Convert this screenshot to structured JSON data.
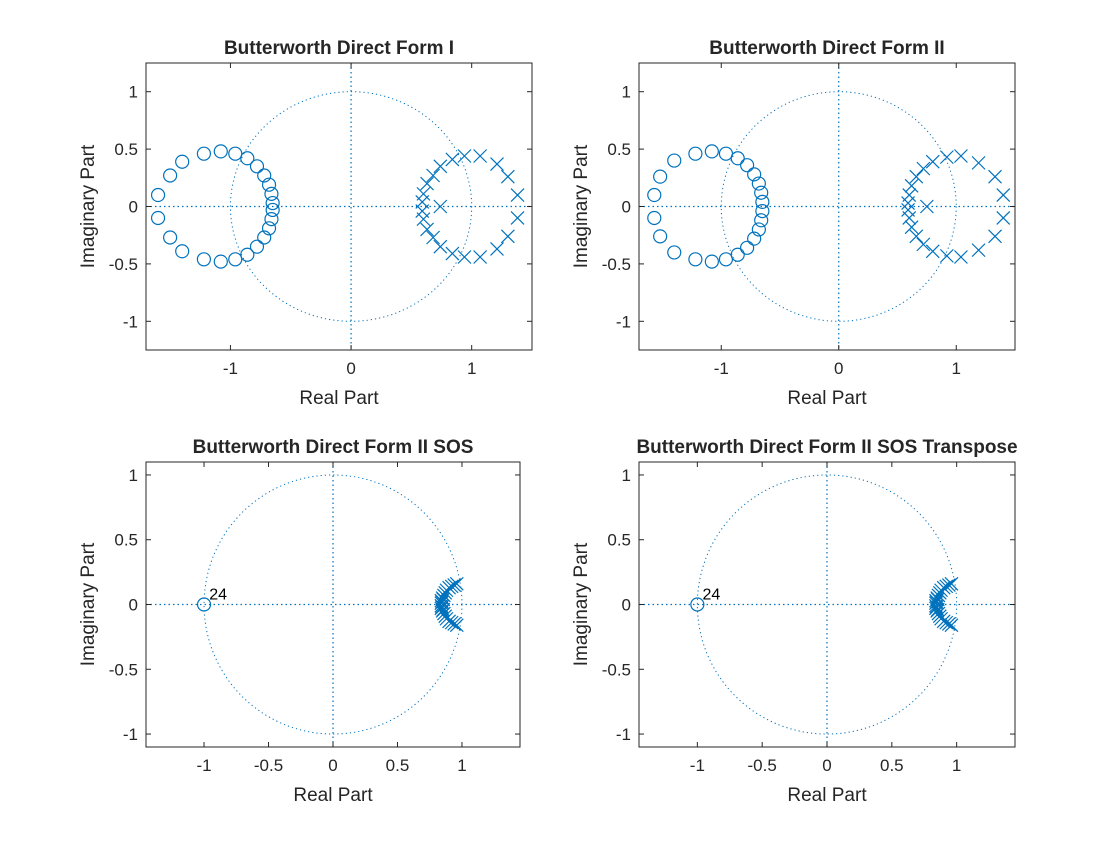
{
  "figure": {
    "background": "#ffffff"
  },
  "style": {
    "mark_color": "#0072BD",
    "axis_color": "#262626"
  },
  "chart_data": [
    {
      "type": "scatter",
      "title": "Butterworth Direct Form I",
      "xlabel": "Real Part",
      "ylabel": "Imaginary Part",
      "xlim": [
        -1.7,
        1.5
      ],
      "ylim": [
        -1.25,
        1.25
      ],
      "xticks": [
        -1,
        0,
        1
      ],
      "yticks": [
        -1,
        -0.5,
        0,
        0.5,
        1
      ],
      "xticklabels": [
        "-1",
        "0",
        "1"
      ],
      "yticklabels": [
        "-1",
        "-0.5",
        "0",
        "0.5",
        "1"
      ],
      "unit_circle": true,
      "annotations": [],
      "series": [
        {
          "marker": "o",
          "points": [
            [
              -1.6,
              0.1
            ],
            [
              -1.6,
              -0.1
            ],
            [
              -1.5,
              0.27
            ],
            [
              -1.5,
              -0.27
            ],
            [
              -1.4,
              0.39
            ],
            [
              -1.4,
              -0.39
            ],
            [
              -1.22,
              0.46
            ],
            [
              -1.22,
              -0.46
            ],
            [
              -1.08,
              0.48
            ],
            [
              -1.08,
              -0.48
            ],
            [
              -0.96,
              0.46
            ],
            [
              -0.96,
              -0.46
            ],
            [
              -0.86,
              0.42
            ],
            [
              -0.86,
              -0.42
            ],
            [
              -0.78,
              0.35
            ],
            [
              -0.78,
              -0.35
            ],
            [
              -0.72,
              0.27
            ],
            [
              -0.72,
              -0.27
            ],
            [
              -0.68,
              0.19
            ],
            [
              -0.68,
              -0.19
            ],
            [
              -0.66,
              0.11
            ],
            [
              -0.66,
              -0.11
            ],
            [
              -0.65,
              0.03
            ],
            [
              -0.65,
              -0.03
            ]
          ]
        },
        {
          "marker": "x",
          "points": [
            [
              1.38,
              0.1
            ],
            [
              1.38,
              -0.1
            ],
            [
              1.3,
              0.26
            ],
            [
              1.3,
              -0.26
            ],
            [
              1.21,
              0.37
            ],
            [
              1.21,
              -0.37
            ],
            [
              1.07,
              0.44
            ],
            [
              1.07,
              -0.44
            ],
            [
              0.94,
              0.44
            ],
            [
              0.94,
              -0.44
            ],
            [
              0.84,
              0.41
            ],
            [
              0.84,
              -0.41
            ],
            [
              0.74,
              0.35
            ],
            [
              0.74,
              -0.35
            ],
            [
              0.68,
              0.27
            ],
            [
              0.68,
              -0.27
            ],
            [
              0.63,
              0.2
            ],
            [
              0.63,
              -0.2
            ],
            [
              0.6,
              0.11
            ],
            [
              0.6,
              -0.11
            ],
            [
              0.59,
              0.04
            ],
            [
              0.59,
              -0.04
            ],
            [
              0.74,
              0.0
            ]
          ]
        }
      ]
    },
    {
      "type": "scatter",
      "title": "Butterworth Direct Form II",
      "xlabel": "Real Part",
      "ylabel": "Imaginary Part",
      "xlim": [
        -1.7,
        1.5
      ],
      "ylim": [
        -1.25,
        1.25
      ],
      "xticks": [
        -1,
        0,
        1
      ],
      "yticks": [
        -1,
        -0.5,
        0,
        0.5,
        1
      ],
      "xticklabels": [
        "-1",
        "0",
        "1"
      ],
      "yticklabels": [
        "-1",
        "-0.5",
        "0",
        "0.5",
        "1"
      ],
      "unit_circle": true,
      "annotations": [],
      "series": [
        {
          "marker": "o",
          "points": [
            [
              -1.57,
              0.1
            ],
            [
              -1.57,
              -0.1
            ],
            [
              -1.52,
              0.26
            ],
            [
              -1.52,
              -0.26
            ],
            [
              -1.4,
              0.4
            ],
            [
              -1.4,
              -0.4
            ],
            [
              -1.22,
              0.46
            ],
            [
              -1.22,
              -0.46
            ],
            [
              -1.08,
              0.48
            ],
            [
              -1.08,
              -0.48
            ],
            [
              -0.96,
              0.46
            ],
            [
              -0.96,
              -0.46
            ],
            [
              -0.86,
              0.42
            ],
            [
              -0.86,
              -0.42
            ],
            [
              -0.78,
              0.36
            ],
            [
              -0.78,
              -0.36
            ],
            [
              -0.72,
              0.28
            ],
            [
              -0.72,
              -0.28
            ],
            [
              -0.68,
              0.2
            ],
            [
              -0.68,
              -0.2
            ],
            [
              -0.66,
              0.12
            ],
            [
              -0.66,
              -0.12
            ],
            [
              -0.65,
              0.04
            ],
            [
              -0.65,
              -0.04
            ]
          ]
        },
        {
          "marker": "x",
          "points": [
            [
              1.4,
              0.1
            ],
            [
              1.4,
              -0.1
            ],
            [
              1.33,
              0.26
            ],
            [
              1.33,
              -0.26
            ],
            [
              1.19,
              0.38
            ],
            [
              1.19,
              -0.38
            ],
            [
              1.04,
              0.44
            ],
            [
              1.04,
              -0.44
            ],
            [
              0.92,
              0.43
            ],
            [
              0.92,
              -0.43
            ],
            [
              0.8,
              0.39
            ],
            [
              0.8,
              -0.39
            ],
            [
              0.72,
              0.33
            ],
            [
              0.72,
              -0.33
            ],
            [
              0.66,
              0.26
            ],
            [
              0.66,
              -0.26
            ],
            [
              0.62,
              0.18
            ],
            [
              0.62,
              -0.18
            ],
            [
              0.6,
              0.1
            ],
            [
              0.6,
              -0.1
            ],
            [
              0.59,
              0.03
            ],
            [
              0.59,
              -0.03
            ],
            [
              0.75,
              0.0
            ]
          ]
        }
      ]
    },
    {
      "type": "scatter",
      "title": "Butterworth Direct Form II SOS",
      "xlabel": "Real Part",
      "ylabel": "Imaginary Part",
      "xlim": [
        -1.45,
        1.45
      ],
      "ylim": [
        -1.1,
        1.1
      ],
      "xticks": [
        -1,
        -0.5,
        0,
        0.5,
        1
      ],
      "yticks": [
        -1,
        -0.5,
        0,
        0.5,
        1
      ],
      "xticklabels": [
        "-1",
        "-0.5",
        "0",
        "0.5",
        "1"
      ],
      "yticklabels": [
        "-1",
        "-0.5",
        "0",
        "0.5",
        "1"
      ],
      "unit_circle": true,
      "annotations": [
        {
          "text": "24",
          "x": -0.96,
          "y": 0.04
        }
      ],
      "series": [
        {
          "marker": "o",
          "points": [
            [
              -1,
              0
            ]
          ]
        },
        {
          "marker": "x",
          "points": [
            [
              0.96,
              0.16
            ],
            [
              0.96,
              -0.16
            ],
            [
              0.94,
              0.15
            ],
            [
              0.94,
              -0.15
            ],
            [
              0.92,
              0.14
            ],
            [
              0.92,
              -0.14
            ],
            [
              0.9,
              0.13
            ],
            [
              0.9,
              -0.13
            ],
            [
              0.88,
              0.11
            ],
            [
              0.88,
              -0.11
            ],
            [
              0.87,
              0.09
            ],
            [
              0.87,
              -0.09
            ],
            [
              0.86,
              0.07
            ],
            [
              0.86,
              -0.07
            ],
            [
              0.85,
              0.05
            ],
            [
              0.85,
              -0.05
            ],
            [
              0.84,
              0.03
            ],
            [
              0.84,
              -0.03
            ],
            [
              0.84,
              0.01
            ],
            [
              0.84,
              -0.01
            ],
            [
              0.845,
              0.02
            ],
            [
              0.845,
              -0.02
            ],
            [
              0.855,
              0.04
            ],
            [
              0.855,
              -0.04
            ]
          ]
        }
      ]
    },
    {
      "type": "scatter",
      "title": "Butterworth Direct Form II SOS Transpose",
      "xlabel": "Real Part",
      "ylabel": "Imaginary Part",
      "xlim": [
        -1.45,
        1.45
      ],
      "ylim": [
        -1.1,
        1.1
      ],
      "xticks": [
        -1,
        -0.5,
        0,
        0.5,
        1
      ],
      "yticks": [
        -1,
        -0.5,
        0,
        0.5,
        1
      ],
      "xticklabels": [
        "-1",
        "-0.5",
        "0",
        "0.5",
        "1"
      ],
      "yticklabels": [
        "-1",
        "-0.5",
        "0",
        "0.5",
        "1"
      ],
      "unit_circle": true,
      "annotations": [
        {
          "text": "24",
          "x": -0.96,
          "y": 0.04
        }
      ],
      "series": [
        {
          "marker": "o",
          "points": [
            [
              -1,
              0
            ]
          ]
        },
        {
          "marker": "x",
          "points": [
            [
              0.96,
              0.16
            ],
            [
              0.96,
              -0.16
            ],
            [
              0.94,
              0.15
            ],
            [
              0.94,
              -0.15
            ],
            [
              0.92,
              0.14
            ],
            [
              0.92,
              -0.14
            ],
            [
              0.9,
              0.13
            ],
            [
              0.9,
              -0.13
            ],
            [
              0.88,
              0.11
            ],
            [
              0.88,
              -0.11
            ],
            [
              0.87,
              0.09
            ],
            [
              0.87,
              -0.09
            ],
            [
              0.86,
              0.07
            ],
            [
              0.86,
              -0.07
            ],
            [
              0.85,
              0.05
            ],
            [
              0.85,
              -0.05
            ],
            [
              0.84,
              0.03
            ],
            [
              0.84,
              -0.03
            ],
            [
              0.84,
              0.01
            ],
            [
              0.84,
              -0.01
            ],
            [
              0.845,
              0.02
            ],
            [
              0.845,
              -0.02
            ],
            [
              0.855,
              0.04
            ],
            [
              0.855,
              -0.04
            ]
          ]
        }
      ]
    }
  ]
}
